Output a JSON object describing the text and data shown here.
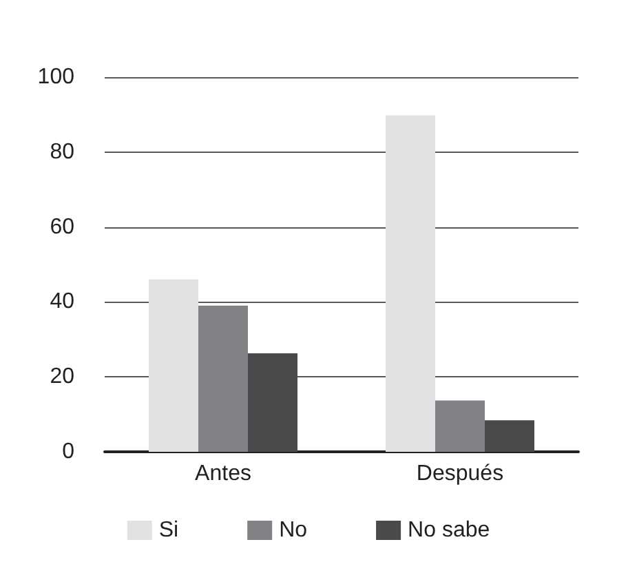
{
  "chart_data": {
    "type": "bar",
    "categories": [
      "Antes",
      "Después"
    ],
    "series": [
      {
        "name": "Si",
        "color": "#e0e1e3",
        "values": [
          46,
          89.8
        ]
      },
      {
        "name": "No",
        "color": "#808184",
        "values": [
          39,
          13.7
        ]
      },
      {
        "name": "No sabe",
        "color": "#4a4a4c",
        "values": [
          26.3,
          8.4
        ]
      }
    ],
    "ylim": [
      0,
      100
    ],
    "yticks": [
      0,
      20,
      40,
      60,
      80,
      100
    ],
    "grid": "y",
    "legend": "bottom"
  }
}
